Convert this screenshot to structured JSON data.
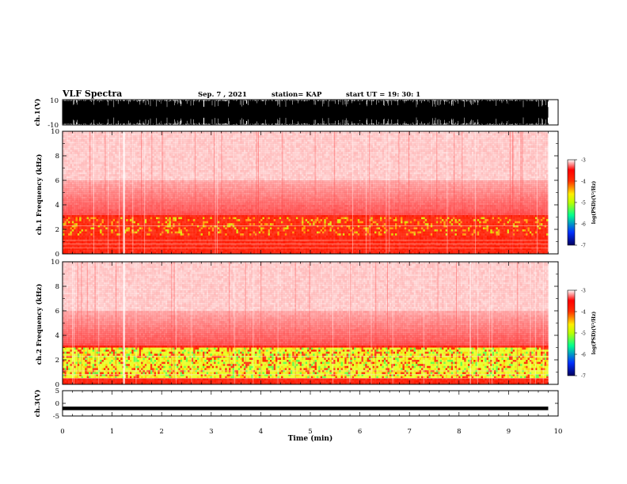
{
  "header": {
    "title": "VLF Spectra",
    "date": "Sep. 7 , 2021",
    "station": "station= KAP",
    "start": "start UT =   19: 30: 1"
  },
  "chart_data": [
    {
      "type": "line",
      "name": "ch1-waveform",
      "ylabel": "ch.1(V)",
      "ylim": [
        -10,
        10
      ],
      "y_ticks": [
        "10",
        "-10"
      ],
      "xlim": [
        0,
        10
      ],
      "note": "dense full-scale waveform, trace ends near 9.8 min"
    },
    {
      "type": "heatmap",
      "name": "ch1-spectrogram",
      "ylabel": "ch.1 Frequency (kHz)",
      "ylim": [
        0,
        10
      ],
      "y_ticks": [
        "0",
        "2",
        "4",
        "6",
        "8",
        "10"
      ],
      "xlim": [
        0,
        9.8
      ],
      "intense_band_khz": [
        1.5,
        3.0
      ],
      "lower_band_khz": [
        0,
        1.5
      ]
    },
    {
      "type": "heatmap",
      "name": "ch2-spectrogram",
      "ylabel": "ch.2 Frequency (kHz)",
      "ylim": [
        0,
        10
      ],
      "y_ticks": [
        "0",
        "2",
        "4",
        "6",
        "8",
        "10"
      ],
      "xlim": [
        0,
        9.8
      ],
      "intense_band_khz": [
        0.5,
        3.0
      ]
    },
    {
      "type": "line",
      "name": "ch3-waveform",
      "ylabel": "ch.3(V)",
      "ylim": [
        -5,
        5
      ],
      "y_ticks": [
        "5",
        "0",
        "-5"
      ],
      "xlim": [
        0,
        10
      ],
      "mean_level": -2,
      "xlabel": "Time  (min)",
      "x_ticks": [
        "0",
        "1",
        "2",
        "3",
        "4",
        "5",
        "6",
        "7",
        "8",
        "9",
        "10"
      ]
    }
  ],
  "colorbar": {
    "label": "log(PSD)(V²/Hz)",
    "ticks": [
      "-3",
      "-4",
      "-5",
      "-6",
      "-7"
    ],
    "range": [
      -7,
      -3
    ],
    "colors": [
      "#000080",
      "#0040ff",
      "#00ff80",
      "#aaff00",
      "#ffff00",
      "#ff4000",
      "#ff0000",
      "#ffffff"
    ]
  }
}
